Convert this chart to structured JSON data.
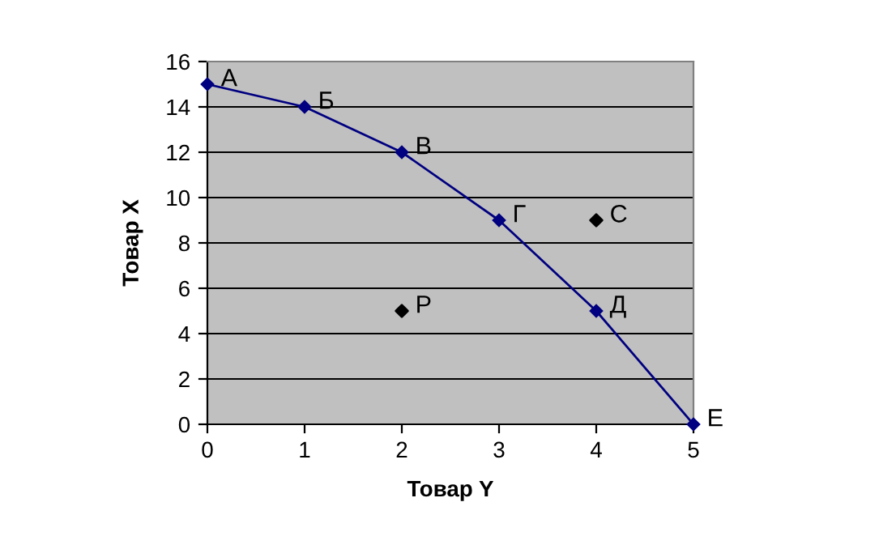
{
  "chart_data": {
    "type": "line",
    "xlabel": "Товар Y",
    "ylabel": "Товар X",
    "series": [
      {
        "x": [
          0,
          1,
          2,
          3,
          4,
          5
        ],
        "values": [
          15,
          14,
          12,
          9,
          5,
          0
        ],
        "color": "#000080"
      },
      {
        "type": "scatter",
        "x": [
          4,
          2
        ],
        "values": [
          9,
          5
        ],
        "color": "#000000"
      }
    ],
    "annotations": [
      {
        "text": "А",
        "x": 0,
        "y": 15
      },
      {
        "text": "Б",
        "x": 1,
        "y": 14
      },
      {
        "text": "В",
        "x": 2,
        "y": 12
      },
      {
        "text": "Г",
        "x": 3,
        "y": 9
      },
      {
        "text": "Д",
        "x": 4,
        "y": 5
      },
      {
        "text": "Е",
        "x": 5,
        "y": 0
      },
      {
        "text": "С",
        "x": 4,
        "y": 9
      },
      {
        "text": "Р",
        "x": 2,
        "y": 5
      }
    ],
    "xlim": [
      0,
      5
    ],
    "ylim": [
      0,
      16
    ],
    "xticks": [
      0,
      1,
      2,
      3,
      4,
      5
    ],
    "yticks": [
      0,
      2,
      4,
      6,
      8,
      10,
      12,
      14,
      16
    ],
    "grid": "y",
    "marker": "diamond",
    "line_style": "solid"
  }
}
